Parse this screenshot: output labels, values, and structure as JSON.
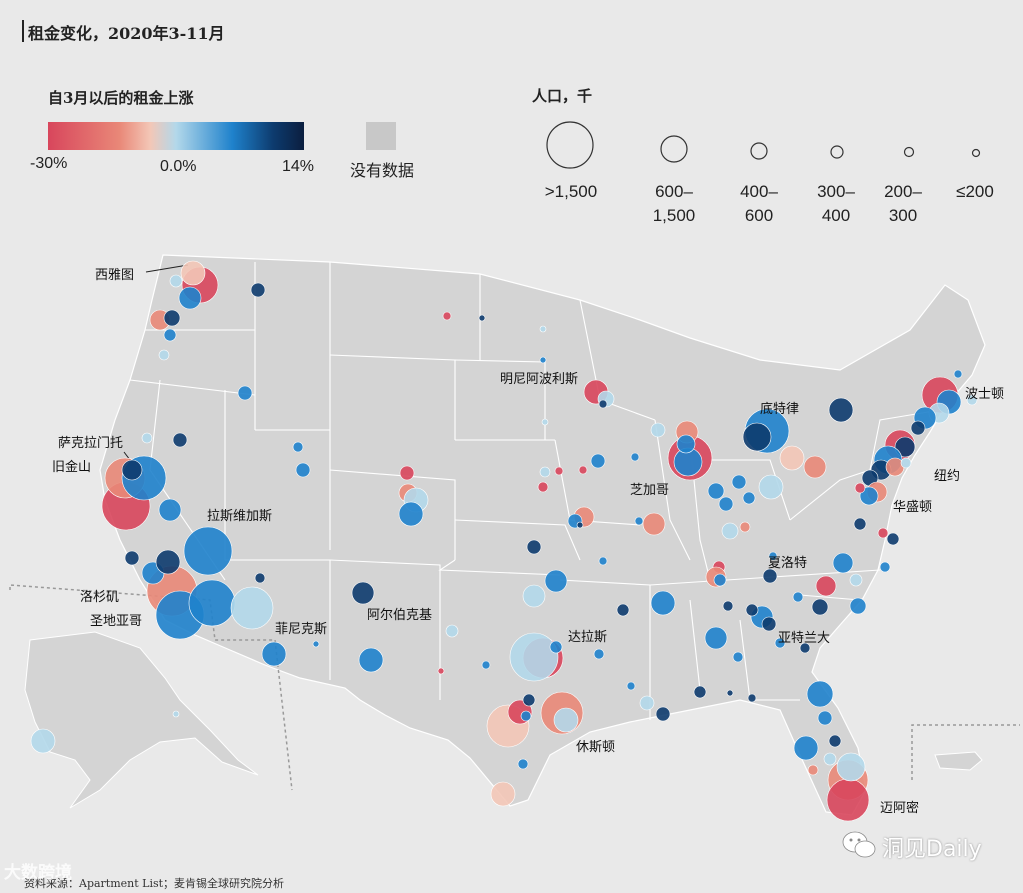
{
  "title": "租金变化，2020年3-11月",
  "legend_rise": {
    "title": "自3月以后的租金上涨",
    "min_label": "-30%",
    "mid_label": "0.0%",
    "max_label": "14%",
    "no_data_label": "没有数据",
    "colors": [
      "#d8465c",
      "#e98878",
      "#f3c7b7",
      "#b3d8ea",
      "#1f82cc",
      "#0d3b6e",
      "#0b1e3f"
    ],
    "no_data_color": "#c8c8c8"
  },
  "legend_population": {
    "title": "人口，千",
    "labels": [
      ">1,500",
      "600–\n1,500",
      "400–\n600",
      "300–\n400",
      "200–\n300",
      "≤200"
    ]
  },
  "map": {
    "land_color": "#d4d4d4",
    "border_color": "#ffffff",
    "cities": [
      {
        "name": "西雅图",
        "icon": "label-leader-line"
      },
      {
        "name": "明尼阿波利斯"
      },
      {
        "name": "底特律"
      },
      {
        "name": "波士顿"
      },
      {
        "name": "萨克拉门托",
        "icon": "label-leader-line"
      },
      {
        "name": "旧金山"
      },
      {
        "name": "纽约"
      },
      {
        "name": "芝加哥"
      },
      {
        "name": "拉斯维加斯"
      },
      {
        "name": "华盛顿"
      },
      {
        "name": "夏洛特"
      },
      {
        "name": "洛杉矶"
      },
      {
        "name": "圣地亚哥"
      },
      {
        "name": "阿尔伯克基"
      },
      {
        "name": "菲尼克斯"
      },
      {
        "name": "亚特兰大"
      },
      {
        "name": "达拉斯"
      },
      {
        "name": "休斯顿"
      },
      {
        "name": "迈阿密"
      }
    ]
  },
  "source": "资料来源：Apartment List；麦肯锡全球研究院分析",
  "watermarks": {
    "left": "大数跨境",
    "right": "洞见Daily",
    "right_icon": "wechat-icon"
  }
}
